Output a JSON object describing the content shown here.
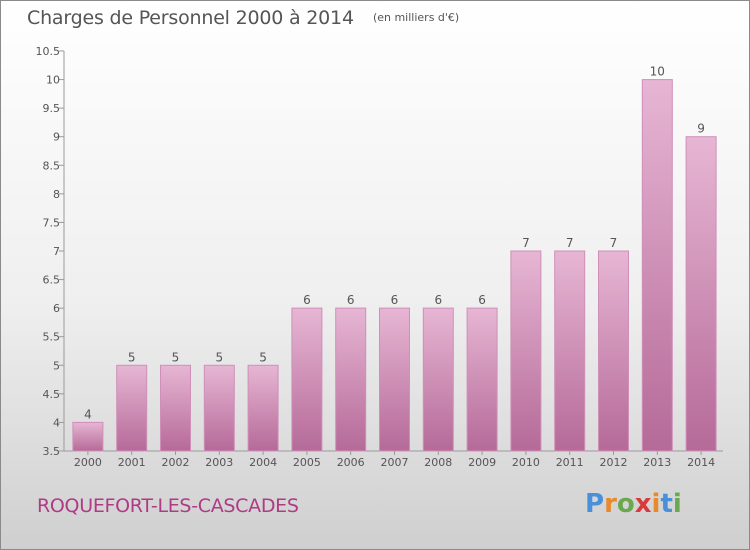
{
  "header": {
    "title": "Charges de Personnel 2000 à 2014",
    "subtitle": "(en milliers d'€)"
  },
  "footer": {
    "commune": "ROQUEFORT-LES-CASCADES",
    "brand": "Proxiti"
  },
  "colors": {
    "bar_top": "#e7b6d4",
    "bar_bottom": "#b56a98",
    "bar_stroke": "#cf8fb8",
    "commune_text": "#b03a86",
    "brand_letters": [
      "#4a90d9",
      "#e8892a",
      "#6aa84f",
      "#d93b3b",
      "#e8892a",
      "#4a90d9",
      "#6aa84f"
    ]
  },
  "chart_data": {
    "type": "bar",
    "categories": [
      "2000",
      "2001",
      "2002",
      "2003",
      "2004",
      "2005",
      "2006",
      "2007",
      "2008",
      "2009",
      "2010",
      "2011",
      "2012",
      "2013",
      "2014"
    ],
    "values": [
      4,
      5,
      5,
      5,
      5,
      6,
      6,
      6,
      6,
      6,
      7,
      7,
      7,
      10,
      9
    ],
    "data_labels": [
      "4",
      "5",
      "5",
      "5",
      "5",
      "6",
      "6",
      "6",
      "6",
      "6",
      "7",
      "7",
      "7",
      "10",
      "9"
    ],
    "title": "Charges de Personnel 2000 à 2014",
    "subtitle": "(en milliers d'€)",
    "xlabel": "",
    "ylabel": "",
    "ylim": [
      3.5,
      10.5
    ],
    "yticks": [
      3.5,
      4,
      4.5,
      5,
      5.5,
      6,
      6.5,
      7,
      7.5,
      8,
      8.5,
      9,
      9.5,
      10,
      10.5
    ],
    "ytick_labels": [
      "3.5",
      "4",
      "4.5",
      "5",
      "5.5",
      "6",
      "6.5",
      "7",
      "7.5",
      "8",
      "8.5",
      "9",
      "9.5",
      "10",
      "10.5"
    ],
    "grid": false,
    "legend": "none"
  }
}
